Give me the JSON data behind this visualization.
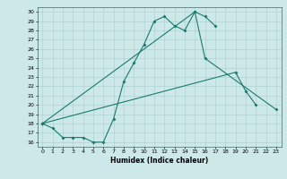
{
  "xlabel": "Humidex (Indice chaleur)",
  "xlim": [
    -0.5,
    23.5
  ],
  "ylim": [
    15.5,
    30.5
  ],
  "yticks": [
    16,
    17,
    18,
    19,
    20,
    21,
    22,
    23,
    24,
    25,
    26,
    27,
    28,
    29,
    30
  ],
  "xticks": [
    0,
    1,
    2,
    3,
    4,
    5,
    6,
    7,
    8,
    9,
    10,
    11,
    12,
    13,
    14,
    15,
    16,
    17,
    18,
    19,
    20,
    21,
    22,
    23
  ],
  "bg_color": "#cde8e8",
  "line_color": "#1a7a6e",
  "grid_color": "#aacccc",
  "s1x": [
    0,
    1,
    2,
    3,
    4,
    5,
    6,
    7,
    8,
    9,
    10,
    11,
    12,
    13,
    14,
    15,
    16,
    17
  ],
  "s1y": [
    18,
    17.5,
    16.5,
    16.5,
    16.5,
    16,
    16,
    18.5,
    22.5,
    24.5,
    26.5,
    29,
    29.5,
    28.5,
    28,
    30,
    29.5,
    28.5
  ],
  "s2x": [
    0,
    19,
    20,
    21
  ],
  "s2y": [
    18,
    23.5,
    21.5,
    20
  ],
  "s3x": [
    0,
    15,
    16,
    23
  ],
  "s3y": [
    18,
    30,
    25,
    19.5
  ]
}
